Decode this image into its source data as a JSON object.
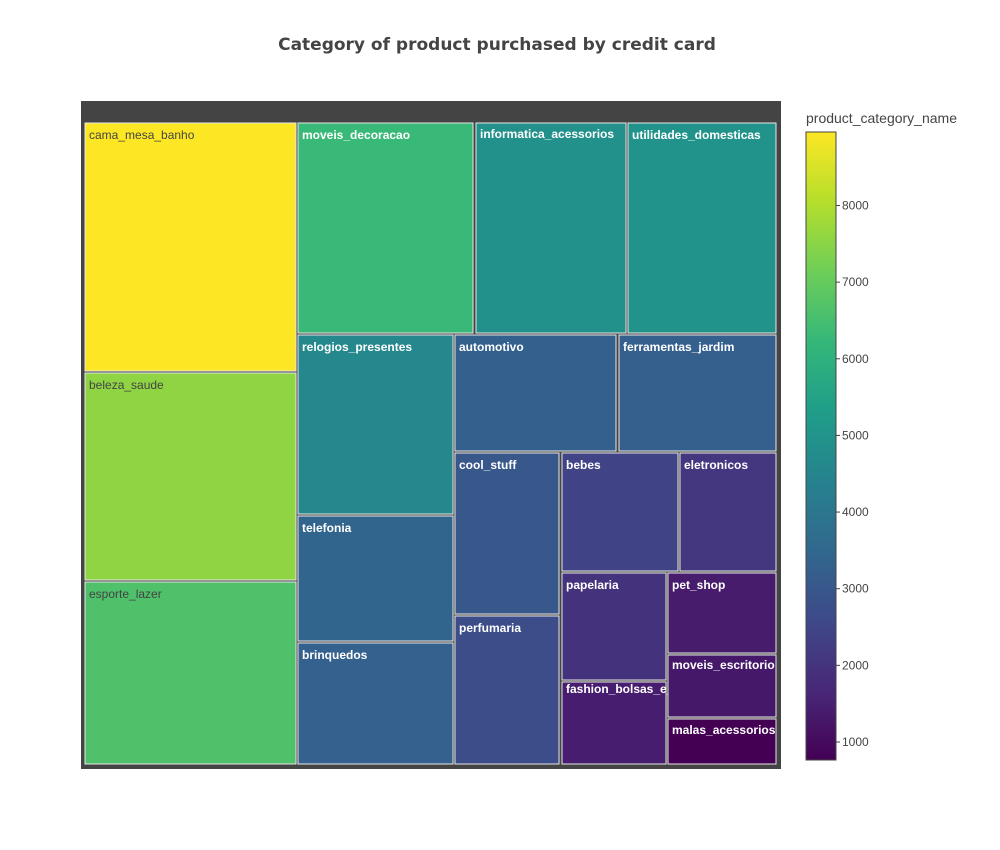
{
  "chart_data": {
    "type": "treemap",
    "title": "Category of product purchased by credit card",
    "colorbar": {
      "title": "product_category_name",
      "colorscale": "viridis",
      "range": [
        765,
        8959
      ],
      "ticks": [
        1000,
        2000,
        3000,
        4000,
        5000,
        6000,
        7000,
        8000
      ]
    },
    "categories": [
      "cama_mesa_banho",
      "beleza_saude",
      "esporte_lazer",
      "moveis_decoracao",
      "informatica_acessorios",
      "utilidades_domesticas",
      "relogios_presentes",
      "telefonia",
      "brinquedos",
      "automotivo",
      "ferramentas_jardim",
      "cool_stuff",
      "perfumaria",
      "bebes",
      "eletronicos",
      "papelaria",
      "fashion_bolsas_e_acessorios",
      "pet_shop",
      "moveis_escritorio",
      "malas_acessorios"
    ],
    "values": [
      8959,
      7566,
      6635,
      6290,
      4868,
      4975,
      4598,
      3400,
      3300,
      3270,
      3230,
      3000,
      2700,
      2440,
      2050,
      1950,
      1450,
      1390,
      1290,
      765
    ]
  }
}
